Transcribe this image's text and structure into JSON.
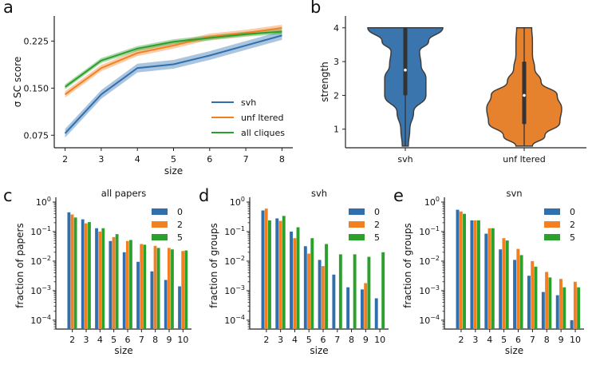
{
  "colors": {
    "blue": "#2f6fae",
    "orange": "#f27f22",
    "green": "#2ca02c",
    "violin_blue": "#3a75ad",
    "violin_orange": "#e6822e"
  },
  "chart_data": [
    {
      "panel": "a",
      "type": "line",
      "title": "",
      "xlabel": "size",
      "ylabel": "σ SC score",
      "xlim": [
        1.7,
        8.3
      ],
      "ylim": [
        0.055,
        0.265
      ],
      "xticks": [
        "2",
        "3",
        "4",
        "5",
        "6",
        "7",
        "8"
      ],
      "yticks": [
        "0.075",
        "0.150",
        "0.225"
      ],
      "x": [
        2,
        3,
        4,
        5,
        6,
        7,
        8
      ],
      "series": [
        {
          "name": "svh",
          "color": "blue",
          "values": [
            0.078,
            0.14,
            0.182,
            0.188,
            0.202,
            0.218,
            0.234
          ],
          "band": 0.007
        },
        {
          "name": "unf ltered",
          "color": "orange",
          "values": [
            0.14,
            0.182,
            0.206,
            0.218,
            0.232,
            0.238,
            0.246
          ],
          "band": 0.005
        },
        {
          "name": "all cliques",
          "color": "green",
          "values": [
            0.152,
            0.194,
            0.213,
            0.224,
            0.23,
            0.236,
            0.24
          ],
          "band": 0.004
        }
      ]
    },
    {
      "panel": "b",
      "type": "violin",
      "title": "",
      "xlabel": "",
      "ylabel": "strength",
      "ylim": [
        0.45,
        4.35
      ],
      "yticks": [
        "1",
        "2",
        "3",
        "4"
      ],
      "categories": [
        "svh",
        "unf ltered"
      ],
      "violins": [
        {
          "name": "svh",
          "color": "violin_blue",
          "profile": [
            [
              0.5,
              0.08
            ],
            [
              1.0,
              0.12
            ],
            [
              1.5,
              0.22
            ],
            [
              2.0,
              0.55
            ],
            [
              2.5,
              0.55
            ],
            [
              2.9,
              0.42
            ],
            [
              3.3,
              0.38
            ],
            [
              3.6,
              0.62
            ],
            [
              4.0,
              1.0
            ]
          ],
          "median": 2.75,
          "q1": 2.0,
          "q3": 4.0,
          "min": 0.5,
          "max": 4.0
        },
        {
          "name": "unf ltered",
          "color": "violin_orange",
          "profile": [
            [
              0.5,
              0.22
            ],
            [
              0.8,
              0.55
            ],
            [
              1.2,
              0.95
            ],
            [
              1.6,
              1.0
            ],
            [
              2.0,
              0.88
            ],
            [
              2.4,
              0.45
            ],
            [
              2.8,
              0.28
            ],
            [
              3.2,
              0.22
            ],
            [
              3.6,
              0.22
            ],
            [
              4.0,
              0.2
            ]
          ],
          "median": 2.0,
          "q1": 1.15,
          "q3": 3.0,
          "min": 0.5,
          "max": 4.0
        }
      ]
    },
    {
      "panel": "c",
      "type": "bar",
      "title": "all papers",
      "xlabel": "size",
      "ylabel": "fraction of papers",
      "yscale": "log",
      "ylim": [
        5e-05,
        1
      ],
      "categories": [
        "2",
        "3",
        "4",
        "5",
        "6",
        "7",
        "8",
        "9",
        "10"
      ],
      "series": [
        {
          "name": "0",
          "color": "blue",
          "values": [
            0.45,
            0.26,
            0.13,
            0.048,
            0.02,
            0.0095,
            0.0045,
            0.0023,
            0.0014
          ]
        },
        {
          "name": "2",
          "color": "orange",
          "values": [
            0.38,
            0.19,
            0.1,
            0.065,
            0.048,
            0.038,
            0.033,
            0.028,
            0.022
          ]
        },
        {
          "name": "5",
          "color": "green",
          "values": [
            0.3,
            0.21,
            0.13,
            0.082,
            0.052,
            0.036,
            0.028,
            0.025,
            0.023
          ]
        }
      ]
    },
    {
      "panel": "d",
      "type": "bar",
      "title": "svh",
      "xlabel": "size",
      "ylabel": "fraction of groups",
      "yscale": "log",
      "ylim": [
        5e-05,
        1
      ],
      "categories": [
        "2",
        "3",
        "4",
        "5",
        "6",
        "7",
        "8",
        "9",
        "10"
      ],
      "series": [
        {
          "name": "0",
          "color": "blue",
          "values": [
            0.52,
            0.28,
            0.1,
            0.032,
            0.011,
            0.0035,
            0.0013,
            0.0011,
            0.00055
          ]
        },
        {
          "name": "2",
          "color": "orange",
          "values": [
            0.6,
            0.23,
            0.06,
            0.018,
            0.0068,
            null,
            null,
            0.0018,
            null
          ]
        },
        {
          "name": "5",
          "color": "green",
          "values": [
            0.24,
            0.34,
            0.14,
            0.06,
            0.038,
            0.017,
            0.017,
            0.014,
            0.02
          ]
        }
      ]
    },
    {
      "panel": "e",
      "type": "bar",
      "title": "svn",
      "xlabel": "size",
      "ylabel": "fraction of groups",
      "yscale": "log",
      "ylim": [
        5e-05,
        1
      ],
      "categories": [
        "2",
        "3",
        "4",
        "5",
        "6",
        "7",
        "8",
        "9",
        "10"
      ],
      "series": [
        {
          "name": "0",
          "color": "blue",
          "values": [
            0.55,
            0.24,
            0.085,
            0.025,
            0.011,
            0.0032,
            0.0009,
            0.0007,
            0.0001
          ]
        },
        {
          "name": "2",
          "color": "orange",
          "values": [
            0.48,
            0.24,
            0.13,
            0.06,
            0.026,
            0.01,
            0.0043,
            0.0025,
            0.002
          ]
        },
        {
          "name": "5",
          "color": "green",
          "values": [
            0.4,
            0.24,
            0.13,
            0.05,
            0.016,
            0.0065,
            0.0028,
            0.0013,
            0.0013
          ]
        }
      ]
    }
  ]
}
